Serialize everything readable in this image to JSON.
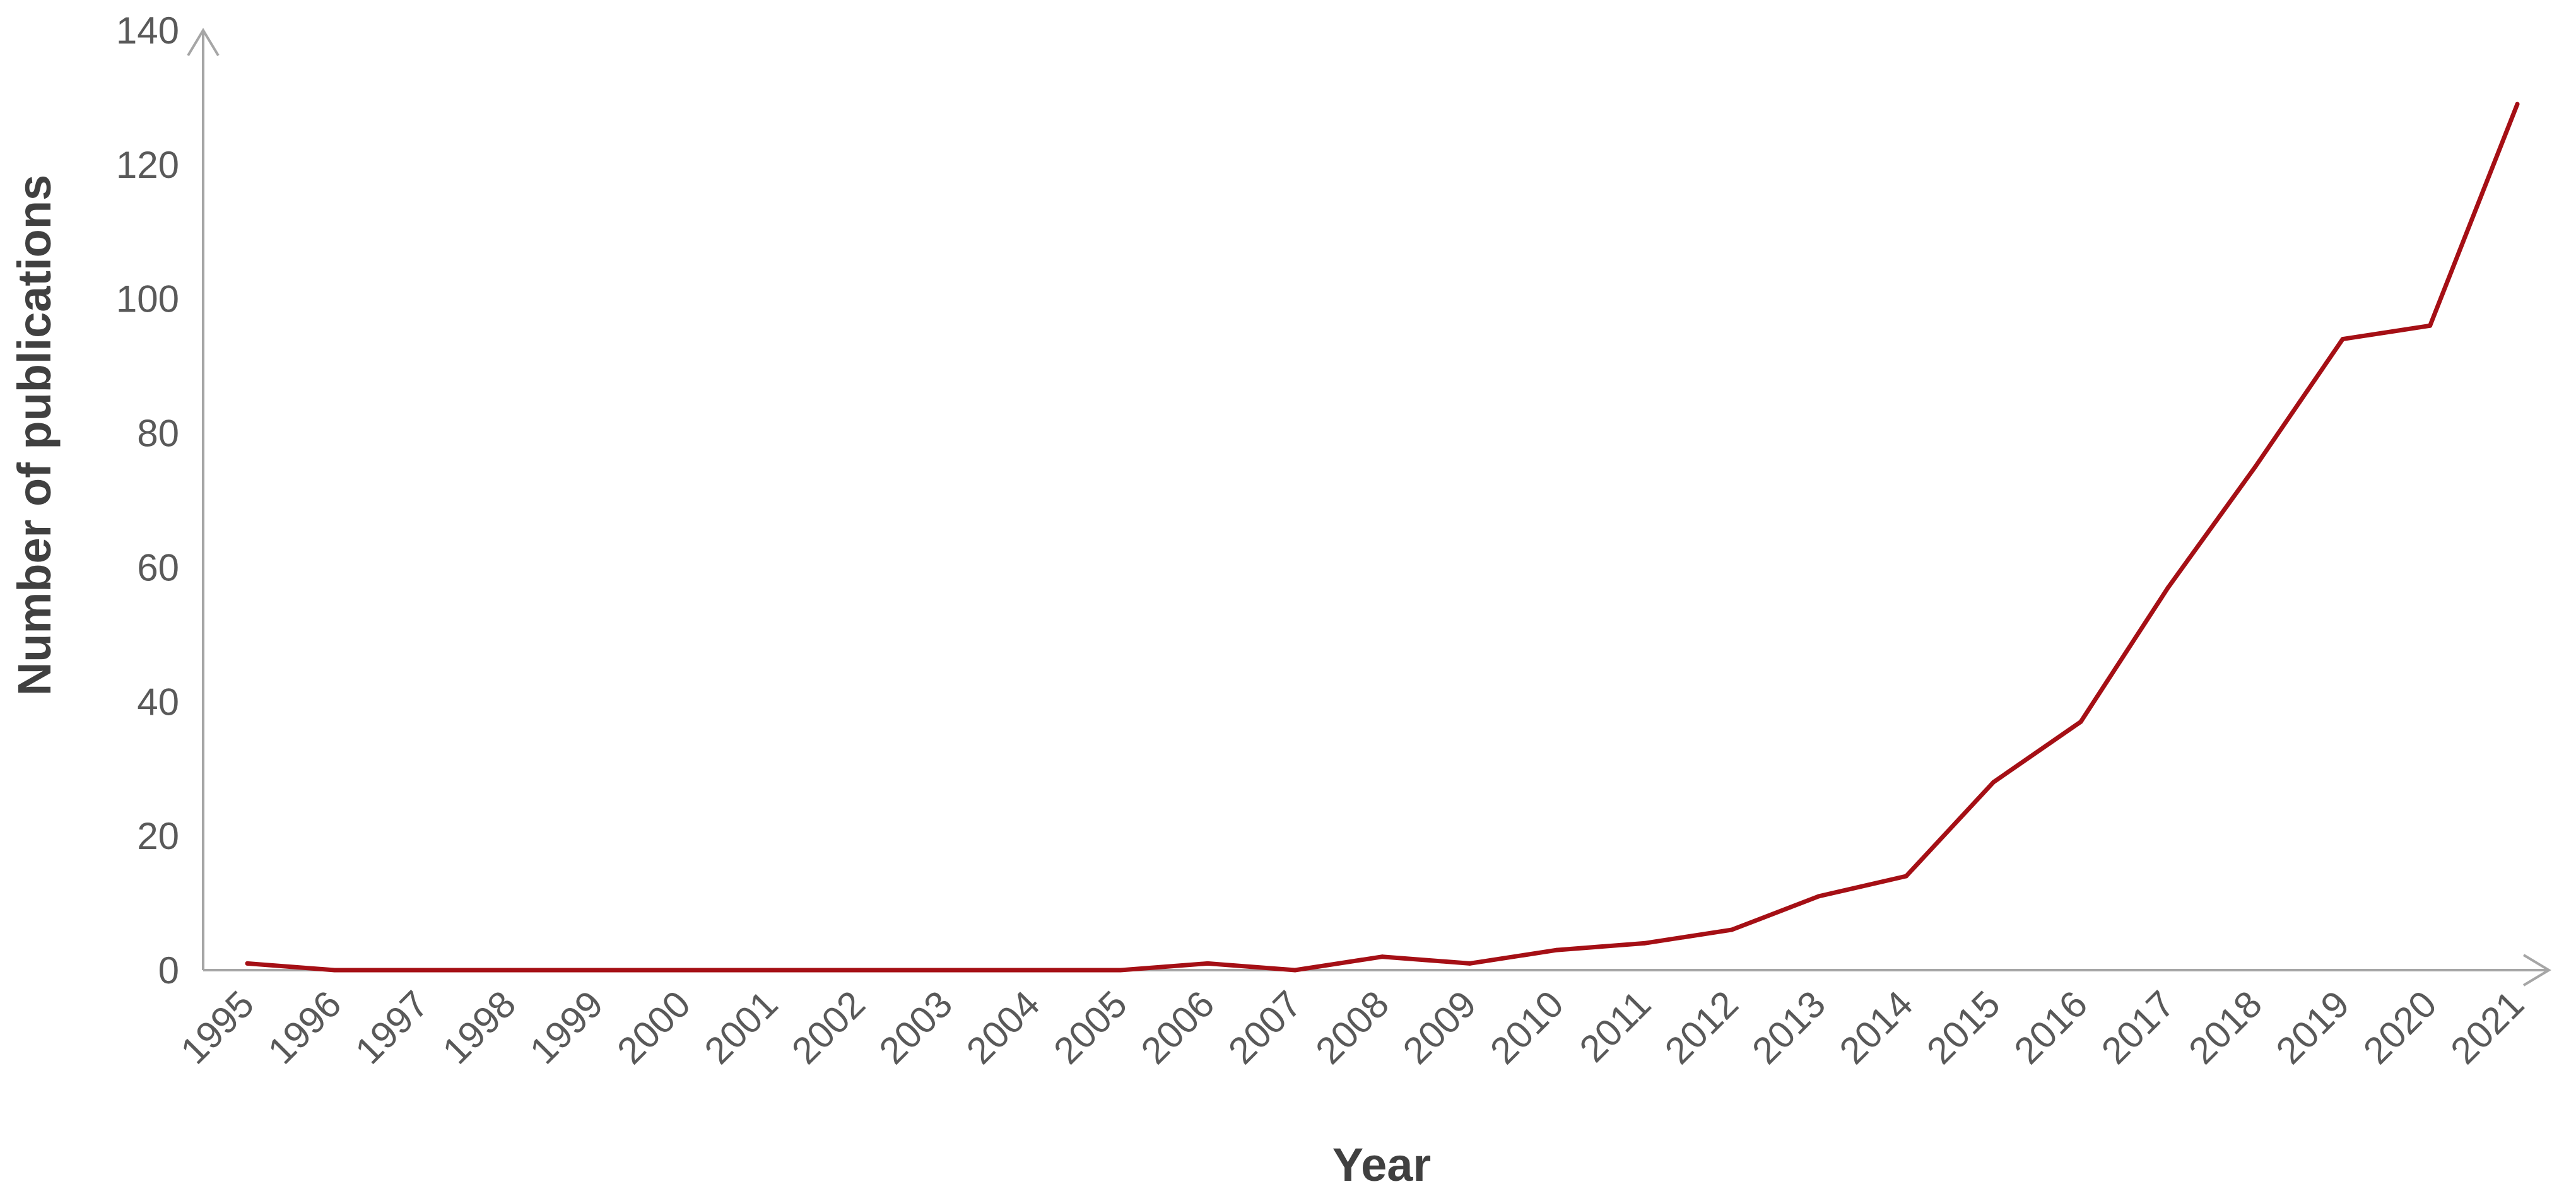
{
  "chart_data": {
    "type": "line",
    "xlabel": "Year",
    "ylabel": "Number of publications",
    "ylim": [
      0,
      140
    ],
    "y_ticks": [
      0,
      20,
      40,
      60,
      80,
      100,
      120,
      140
    ],
    "grid": false,
    "categories": [
      "1995",
      "1996",
      "1997",
      "1998",
      "1999",
      "2000",
      "2001",
      "2002",
      "2003",
      "2004",
      "2005",
      "2006",
      "2007",
      "2008",
      "2009",
      "2010",
      "2011",
      "2012",
      "2013",
      "2014",
      "2015",
      "2016",
      "2017",
      "2018",
      "2019",
      "2020",
      "2021"
    ],
    "series": [
      {
        "color": "#a50f15",
        "values": [
          1,
          0,
          0,
          0,
          0,
          0,
          0,
          0,
          0,
          0,
          0,
          1,
          0,
          2,
          1,
          3,
          4,
          6,
          11,
          14,
          28,
          37,
          57,
          75,
          94,
          96,
          129
        ]
      }
    ]
  }
}
